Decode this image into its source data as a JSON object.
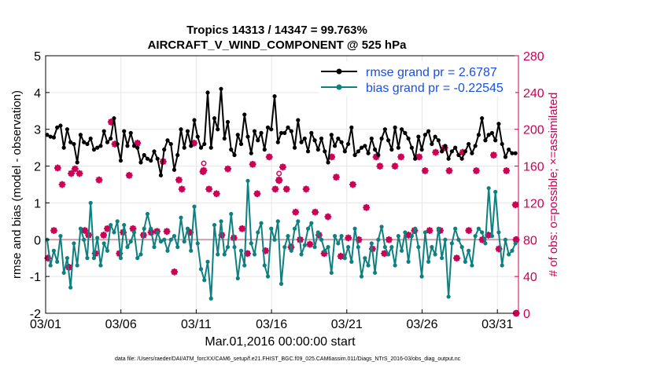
{
  "chart_data": {
    "type": "line",
    "title_line1": "Tropics 14313 / 14347 = 99.763%",
    "title_line2": "AIRCRAFT_V_WIND_COMPONENT @ 525 hPa",
    "xlabel": "Mar.01,2016 00:00:00 start",
    "ylabel": "rmse and bias (model - observation)",
    "ylabel_right": "# of obs: o=possible; ×=assimilated",
    "footnote": "data file: /Users/raeder/DAI/ATM_forcXX/CAM6_setup/f.e21.FHIST_BGC.f09_025.CAM6assim.011/Diags_NTrS_2016-03/obs_diag_output.nc",
    "xlim": [
      0,
      31.4
    ],
    "ylim": [
      -2,
      5
    ],
    "ylim_right": [
      0,
      280
    ],
    "x_ticks": [
      0,
      5,
      10,
      15,
      20,
      25,
      30
    ],
    "x_tick_labels": [
      "03/01",
      "03/06",
      "03/11",
      "03/16",
      "03/21",
      "03/26",
      "03/31"
    ],
    "y_ticks": [
      -2,
      -1,
      0,
      1,
      2,
      3,
      4,
      5
    ],
    "y_tick_labels": [
      "-2",
      "-1",
      "0",
      "1",
      "2",
      "3",
      "4",
      "5"
    ],
    "y_ticks_right": [
      0,
      40,
      80,
      120,
      160,
      200,
      240,
      280
    ],
    "y_tick_labels_right": [
      "0",
      "40",
      "80",
      "120",
      "160",
      "200",
      "240",
      "280"
    ],
    "colors": {
      "rmse": "#000000",
      "bias": "#0f8080",
      "obs": "#cc0055",
      "zero_line": "#c8a0a8",
      "legend_text": "#1a4fe0"
    },
    "series": [
      {
        "name": "rmse grand pr = 2.6787",
        "values": [
          2.85,
          2.8,
          2.78,
          3.05,
          3.1,
          2.5,
          3.0,
          2.65,
          2.6,
          2.1,
          2.85,
          2.65,
          2.6,
          2.75,
          2.45,
          2.5,
          2.55,
          2.95,
          2.65,
          2.75,
          3.3,
          2.6,
          2.15,
          2.95,
          2.55,
          2.9,
          2.55,
          2.5,
          2.1,
          2.3,
          2.2,
          2.15,
          2.4,
          2.2,
          1.75,
          2.45,
          2.7,
          2.6,
          1.9,
          2.3,
          3.0,
          2.5,
          2.95,
          2.55,
          3.25,
          2.8,
          2.5,
          2.6,
          4.0,
          2.5,
          3.3,
          3.0,
          4.1,
          2.75,
          3.2,
          2.45,
          2.3,
          2.85,
          2.6,
          3.4,
          2.8,
          2.35,
          2.95,
          2.7,
          2.9,
          2.45,
          3.05,
          3.0,
          3.9,
          2.65,
          2.9,
          2.9,
          3.05,
          2.95,
          2.5,
          3.25,
          2.65,
          2.75,
          2.4,
          2.9,
          2.7,
          2.45,
          2.75,
          2.4,
          2.1,
          2.85,
          2.55,
          2.75,
          2.65,
          2.4,
          2.6,
          3.05,
          2.3,
          2.4,
          2.5,
          2.55,
          2.35,
          2.75,
          2.45,
          2.3,
          2.75,
          3.0,
          2.7,
          2.45,
          3.05,
          2.5,
          3.0,
          2.9,
          2.75,
          2.5,
          2.2,
          2.8,
          2.45,
          2.85,
          2.95,
          2.6,
          2.8,
          2.7,
          2.4,
          2.55,
          2.2,
          2.4,
          2.5,
          2.3,
          2.2,
          2.4,
          2.6,
          2.35,
          2.55,
          2.85,
          3.3,
          2.7,
          2.85,
          2.9,
          2.7,
          3.15,
          2.6,
          2.25,
          2.45,
          2.35,
          2.35
        ]
      },
      {
        "name": "bias grand pr = -0.22545",
        "values": [
          0.0,
          -0.7,
          -0.3,
          -0.6,
          0.1,
          -0.9,
          -0.5,
          -1.3,
          -0.1,
          -0.7,
          0.3,
          0.0,
          -0.5,
          1.0,
          -0.5,
          0.05,
          -0.7,
          -0.1,
          -0.3,
          0.4,
          0.2,
          0.5,
          -0.5,
          0.4,
          -0.2,
          -0.05,
          0.2,
          -0.5,
          -0.4,
          0.3,
          0.7,
          0.3,
          -0.2,
          0.2,
          -0.05,
          0.0,
          -0.3,
          0.0,
          0.1,
          -0.2,
          0.6,
          -0.05,
          0.3,
          -0.3,
          0.9,
          -0.1,
          -0.8,
          -1.1,
          -0.6,
          -1.6,
          0.4,
          -0.4,
          0.5,
          -0.4,
          -0.2,
          0.7,
          -0.2,
          -1.05,
          -0.3,
          -0.7,
          1.6,
          -0.1,
          -0.4,
          0.2,
          0.45,
          -0.7,
          -1.0,
          0.3,
          0.0,
          0.5,
          -1.2,
          -0.2,
          0.1,
          -0.3,
          0.3,
          0.5,
          -0.4,
          -0.15,
          0.3,
          0.45,
          -0.2,
          0.2,
          0.0,
          -0.3,
          -0.2,
          -0.9,
          0.1,
          -0.1,
          0.1,
          -0.5,
          -0.2,
          -0.6,
          0.3,
          -0.2,
          -1.0,
          -0.5,
          -0.7,
          -0.1,
          -0.9,
          0.0,
          0.35,
          -0.2,
          -0.4,
          -0.2,
          -0.7,
          0.1,
          -0.3,
          0.2,
          -0.6,
          0.1,
          0.3,
          -0.2,
          -1.0,
          0.2,
          -0.6,
          -0.2,
          -0.4,
          0.3,
          -0.5,
          0.0,
          -1.55,
          -0.1,
          0.3,
          0.0,
          -0.2,
          -0.6,
          -0.3,
          -0.7,
          0.1,
          0.3,
          0.2,
          -0.1,
          1.4,
          0.1,
          1.3,
          0.2,
          -0.7,
          0.0,
          -0.4,
          -0.3,
          -0.1
        ]
      }
    ],
    "obs_assimilated_points": [
      [
        0.15,
        60
      ],
      [
        0.55,
        90
      ],
      [
        0.8,
        158
      ],
      [
        1.1,
        140
      ],
      [
        1.55,
        50
      ],
      [
        1.7,
        152
      ],
      [
        1.95,
        157
      ],
      [
        2.25,
        152
      ],
      [
        2.6,
        90
      ],
      [
        2.85,
        85
      ],
      [
        3.3,
        65
      ],
      [
        3.55,
        145
      ],
      [
        3.85,
        85
      ],
      [
        4.1,
        92
      ],
      [
        4.35,
        208
      ],
      [
        4.6,
        184
      ],
      [
        4.9,
        65
      ],
      [
        5.15,
        88
      ],
      [
        5.55,
        150
      ],
      [
        5.8,
        92
      ],
      [
        6.1,
        185
      ],
      [
        6.5,
        85
      ],
      [
        7.0,
        88
      ],
      [
        7.4,
        89
      ],
      [
        7.8,
        165
      ],
      [
        8.05,
        89
      ],
      [
        8.55,
        45
      ],
      [
        8.85,
        145
      ],
      [
        9.05,
        135
      ],
      [
        9.6,
        88
      ],
      [
        9.85,
        185
      ],
      [
        10.45,
        154
      ],
      [
        10.85,
        135
      ],
      [
        11.35,
        130
      ],
      [
        11.7,
        85
      ],
      [
        12.1,
        157
      ],
      [
        12.5,
        82
      ],
      [
        13.05,
        92
      ],
      [
        13.4,
        65
      ],
      [
        13.75,
        162
      ],
      [
        14.05,
        130
      ],
      [
        14.6,
        68
      ],
      [
        14.85,
        170
      ],
      [
        15.25,
        135
      ],
      [
        15.5,
        145
      ],
      [
        15.75,
        159
      ],
      [
        16.0,
        135
      ],
      [
        16.3,
        72
      ],
      [
        16.6,
        110
      ],
      [
        16.9,
        80
      ],
      [
        17.3,
        135
      ],
      [
        17.55,
        75
      ],
      [
        17.9,
        110
      ],
      [
        18.15,
        85
      ],
      [
        18.5,
        65
      ],
      [
        18.75,
        105
      ],
      [
        19.0,
        170
      ],
      [
        19.3,
        148
      ],
      [
        19.6,
        62
      ],
      [
        20.1,
        82
      ],
      [
        20.4,
        140
      ],
      [
        20.8,
        80
      ],
      [
        21.3,
        115
      ],
      [
        21.7,
        70
      ],
      [
        21.95,
        170
      ],
      [
        22.2,
        160
      ],
      [
        22.5,
        65
      ],
      [
        22.8,
        80
      ],
      [
        23.2,
        160
      ],
      [
        23.6,
        170
      ],
      [
        24.1,
        85
      ],
      [
        24.5,
        90
      ],
      [
        24.8,
        170
      ],
      [
        25.2,
        155
      ],
      [
        25.5,
        90
      ],
      [
        25.9,
        175
      ],
      [
        26.2,
        90
      ],
      [
        26.5,
        180
      ],
      [
        26.8,
        155
      ],
      [
        27.3,
        60
      ],
      [
        27.7,
        175
      ],
      [
        28.1,
        90
      ],
      [
        28.6,
        155
      ],
      [
        29.0,
        80
      ],
      [
        29.4,
        85
      ],
      [
        29.75,
        172
      ],
      [
        30.1,
        70
      ],
      [
        30.6,
        155
      ],
      [
        31.2,
        118
      ]
    ],
    "obs_possible_points": [
      [
        10.5,
        163
      ],
      [
        15.5,
        152
      ]
    ],
    "obs_edge_points": [
      [
        31.25,
        80
      ],
      [
        31.25,
        0
      ]
    ]
  }
}
